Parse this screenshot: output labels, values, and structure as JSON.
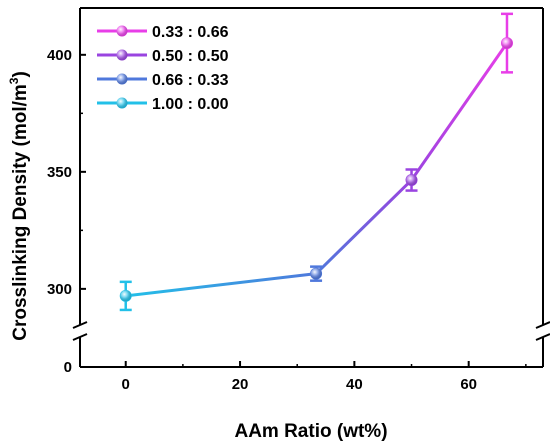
{
  "chart_data": {
    "type": "line",
    "xlabel": "AAm Ratio (wt%)",
    "ylabel": "Crosslinking Density (mol/m",
    "ylabel_superscript": "3",
    "ylabel_close": ")",
    "xlim": [
      -8,
      73
    ],
    "ylim_upper": [
      282,
      420
    ],
    "y_axis_break": true,
    "x_ticks": [
      0,
      20,
      40,
      60
    ],
    "x_tick_labels": [
      "0",
      "20",
      "40",
      "60"
    ],
    "y_ticks": [
      300,
      350,
      400
    ],
    "y_tick_labels": [
      "300",
      "350",
      "400"
    ],
    "y_break_tick_label": "0",
    "legend_position": "top-left",
    "points": [
      {
        "x": 0,
        "y": 297,
        "err": 6,
        "color": "#22c0e8"
      },
      {
        "x": 33.3,
        "y": 306.5,
        "err": 3,
        "color": "#4f78dc"
      },
      {
        "x": 50,
        "y": 346.5,
        "err": 4.5,
        "color": "#9a44e0"
      },
      {
        "x": 66.7,
        "y": 405,
        "err": 12.5,
        "color": "#e83ee8"
      }
    ],
    "series": [
      {
        "name": "0.33 : 0.66",
        "color": "#e83ee8"
      },
      {
        "name": "0.50 : 0.50",
        "color": "#9a44e0"
      },
      {
        "name": "0.66 : 0.33",
        "color": "#4f78dc"
      },
      {
        "name": "1.00 : 0.00",
        "color": "#22c0e8"
      }
    ]
  }
}
